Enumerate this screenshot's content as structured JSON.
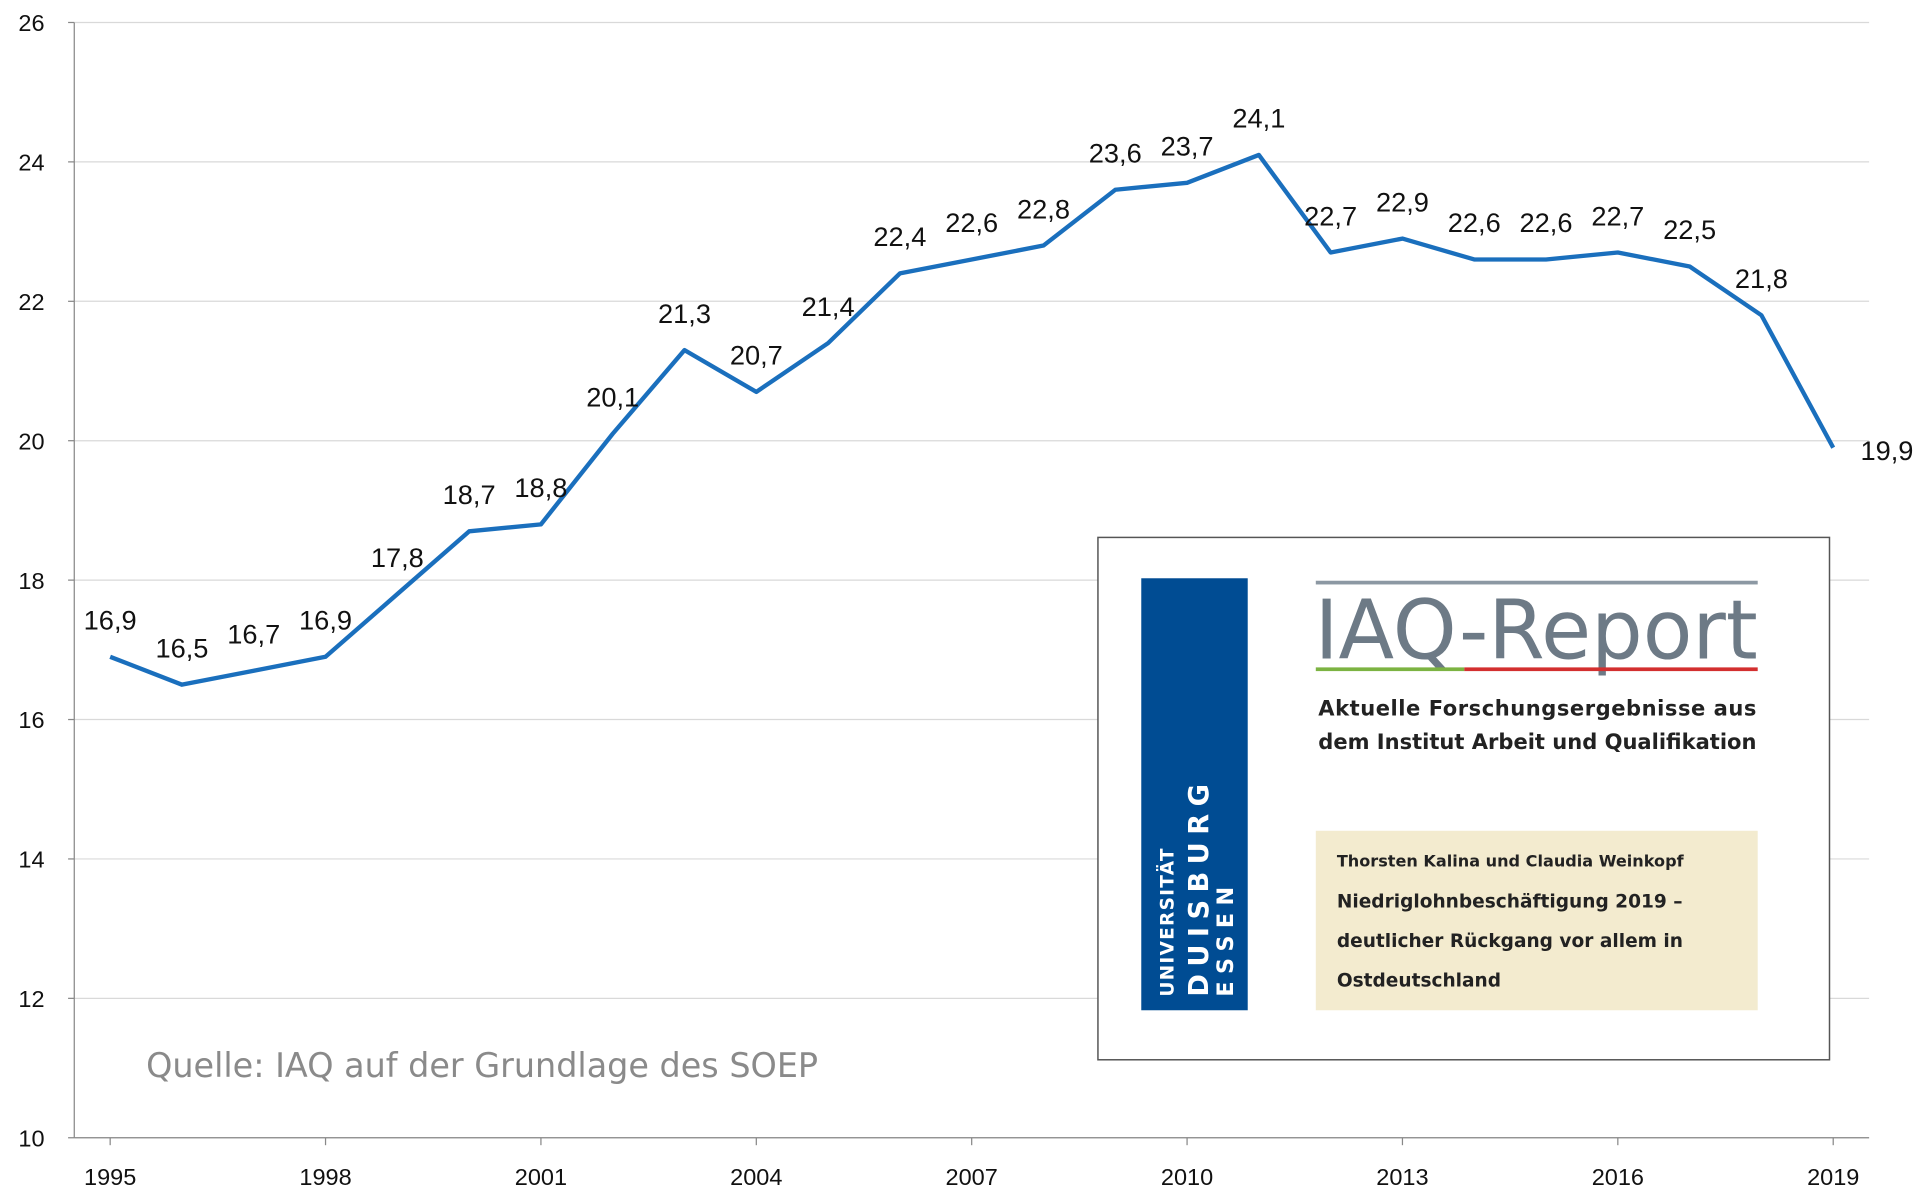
{
  "chart_data": {
    "type": "line",
    "x": [
      1995,
      1996,
      1997,
      1998,
      1999,
      2000,
      2001,
      2002,
      2003,
      2004,
      2005,
      2006,
      2007,
      2008,
      2009,
      2010,
      2011,
      2012,
      2013,
      2014,
      2015,
      2016,
      2017,
      2018,
      2019
    ],
    "series": [
      {
        "color": "#1a6fbd",
        "values": [
          16.9,
          16.5,
          16.7,
          16.9,
          17.8,
          18.7,
          18.8,
          20.1,
          21.3,
          20.7,
          21.4,
          22.4,
          22.6,
          22.8,
          23.6,
          23.7,
          24.1,
          22.7,
          22.9,
          22.6,
          22.6,
          22.7,
          22.5,
          21.8,
          19.9
        ],
        "value_labels": [
          "16,9",
          "16,5",
          "16,7",
          "16,9",
          "17,8",
          "18,7",
          "18,8",
          "20,1",
          "21,3",
          "20,7",
          "21,4",
          "22,4",
          "22,6",
          "22,8",
          "23,6",
          "23,7",
          "24,1",
          "22,7",
          "22,9",
          "22,6",
          "22,6",
          "22,7",
          "22,5",
          "21,8",
          "19,9"
        ]
      }
    ],
    "xlim": [
      1994.5,
      2019.5
    ],
    "xticks": [
      1995,
      1998,
      2001,
      2004,
      2007,
      2010,
      2013,
      2016,
      2019
    ],
    "ylim": [
      10,
      26
    ],
    "yticks": [
      10,
      12,
      14,
      16,
      18,
      20,
      22,
      24,
      26
    ],
    "grid": true,
    "annotation": "Quelle: IAQ auf der Grundlage des SOEP",
    "inset": {
      "university": "UNIVERSITÄT",
      "city1": "DUISBURG",
      "city2": "ESSEN",
      "report": "IAQ-Report",
      "subtitle1": "Aktuelle Forschungsergebnisse aus",
      "subtitle2": "dem Institut Arbeit und Qualifikation",
      "authors": "Thorsten Kalina und Claudia Weinkopf",
      "title1": "Niedriglohnbeschäftigung 2019 –",
      "title2": "deutlicher Rückgang vor allem in",
      "title3": "Ostdeutschland"
    }
  }
}
